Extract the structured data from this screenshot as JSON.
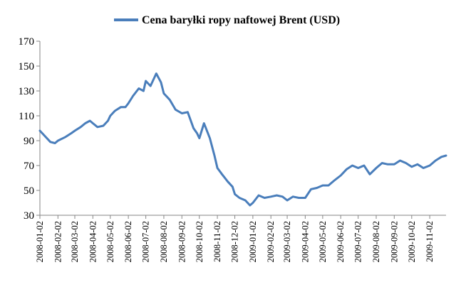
{
  "chart_data": {
    "type": "line",
    "title": "",
    "xlabel": "",
    "ylabel": "",
    "legend_position": "top-center",
    "grid": false,
    "ylim": [
      30,
      170
    ],
    "yticks": [
      30,
      50,
      70,
      90,
      110,
      130,
      150,
      170
    ],
    "xlim": [
      "2008-01-02",
      "2009-11-30"
    ],
    "xtick_labels": [
      "2008-01-02",
      "2008-02-02",
      "2008-03-02",
      "2008-04-02",
      "2008-05-02",
      "2008-06-02",
      "2008-07-02",
      "2008-08-02",
      "2008-09-02",
      "2008-10-02",
      "2008-11-02",
      "2008-12-02",
      "2009-01-02",
      "2009-02-02",
      "2009-03-02",
      "2009-04-02",
      "2009-05-02",
      "2009-06-02",
      "2009-07-02",
      "2009-08-02",
      "2009-09-02",
      "2009-10-02",
      "2009-11-02"
    ],
    "series": [
      {
        "name": "Cena baryłki ropy naftowej Brent (USD)",
        "color": "#4a7ebb",
        "x": [
          "2008-01-02",
          "2008-01-10",
          "2008-01-20",
          "2008-01-28",
          "2008-02-02",
          "2008-02-15",
          "2008-02-25",
          "2008-03-02",
          "2008-03-12",
          "2008-03-20",
          "2008-03-28",
          "2008-04-02",
          "2008-04-10",
          "2008-04-20",
          "2008-04-28",
          "2008-05-02",
          "2008-05-10",
          "2008-05-20",
          "2008-05-28",
          "2008-06-02",
          "2008-06-10",
          "2008-06-20",
          "2008-06-28",
          "2008-07-02",
          "2008-07-10",
          "2008-07-20",
          "2008-07-28",
          "2008-08-02",
          "2008-08-12",
          "2008-08-22",
          "2008-09-02",
          "2008-09-12",
          "2008-09-22",
          "2008-09-28",
          "2008-10-02",
          "2008-10-10",
          "2008-10-20",
          "2008-10-28",
          "2008-11-02",
          "2008-11-10",
          "2008-11-20",
          "2008-11-28",
          "2008-12-02",
          "2008-12-10",
          "2008-12-20",
          "2008-12-28",
          "2009-01-02",
          "2009-01-12",
          "2009-01-22",
          "2009-02-02",
          "2009-02-12",
          "2009-02-22",
          "2009-03-02",
          "2009-03-12",
          "2009-03-22",
          "2009-04-02",
          "2009-04-12",
          "2009-04-22",
          "2009-05-02",
          "2009-05-12",
          "2009-05-22",
          "2009-06-02",
          "2009-06-12",
          "2009-06-22",
          "2009-07-02",
          "2009-07-12",
          "2009-07-22",
          "2009-08-02",
          "2009-08-12",
          "2009-08-22",
          "2009-09-02",
          "2009-09-12",
          "2009-09-22",
          "2009-10-02",
          "2009-10-12",
          "2009-10-22",
          "2009-11-02",
          "2009-11-12",
          "2009-11-22",
          "2009-11-30"
        ],
        "values": [
          98,
          94,
          89,
          88,
          90,
          93,
          96,
          98,
          101,
          104,
          106,
          104,
          101,
          102,
          106,
          110,
          114,
          117,
          117,
          120,
          126,
          132,
          130,
          138,
          134,
          144,
          137,
          128,
          123,
          115,
          112,
          113,
          100,
          96,
          92,
          104,
          92,
          78,
          68,
          63,
          57,
          53,
          47,
          44,
          42,
          38,
          40,
          46,
          44,
          45,
          46,
          45,
          42,
          45,
          44,
          44,
          51,
          52,
          54,
          54,
          58,
          62,
          67,
          70,
          68,
          70,
          63,
          68,
          72,
          71,
          71,
          74,
          72,
          69,
          71,
          68,
          70,
          74,
          77,
          78
        ]
      }
    ]
  }
}
